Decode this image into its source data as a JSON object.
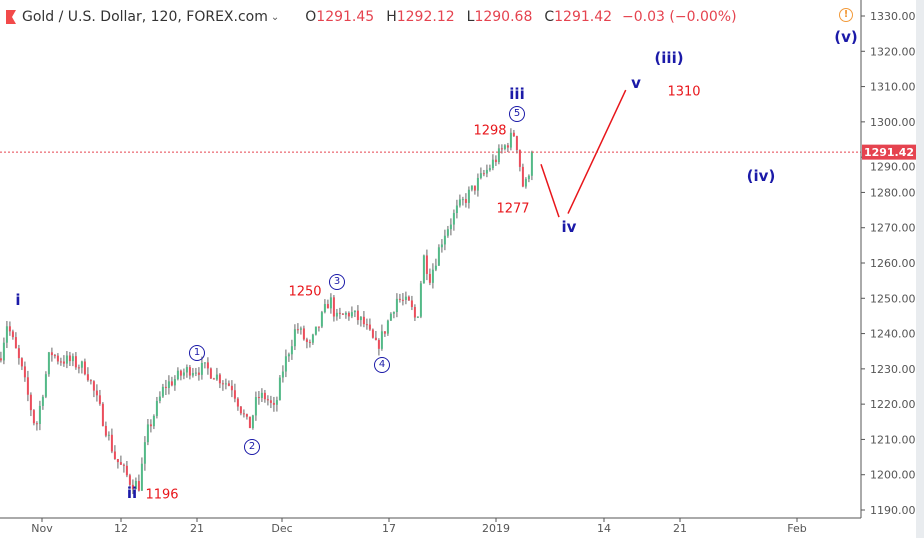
{
  "header": {
    "symbol": "Gold / U.S. Dollar, 120, FOREX.com",
    "open_label": "O",
    "open": "1291.45",
    "high_label": "H",
    "high": "1292.12",
    "low_label": "L",
    "low": "1290.68",
    "close_label": "C",
    "close": "1291.42",
    "change": "−0.03 (−0.00%)",
    "warning_icon": "exclamation-circle-icon"
  },
  "colors": {
    "up": "#53b987",
    "down": "#eb4d5c",
    "projection": "#e8161b",
    "wave_labels": "#1b1aa8",
    "price_tag": "#e5434f"
  },
  "chart_data": {
    "type": "candlestick",
    "title": "",
    "ylim": [
      1190,
      1330
    ],
    "y_ticks": [
      "1330.00",
      "1320.00",
      "1310.00",
      "1300.00",
      "1290.00",
      "1280.00",
      "1270.00",
      "1260.00",
      "1250.00",
      "1240.00",
      "1230.00",
      "1220.00",
      "1210.00",
      "1200.00",
      "1190.00"
    ],
    "x_ticks": [
      {
        "label": "Nov",
        "date": "2018-11-01"
      },
      {
        "label": "12",
        "date": "2018-11-12"
      },
      {
        "label": "21",
        "date": "2018-11-21"
      },
      {
        "label": "Dec",
        "date": "2018-12-01"
      },
      {
        "label": "17",
        "date": "2018-12-17"
      },
      {
        "label": "2019",
        "date": "2019-01-02"
      },
      {
        "label": "14",
        "date": "2019-01-14"
      },
      {
        "label": "21",
        "date": "2019-01-21"
      },
      {
        "label": "Feb",
        "date": "2019-02-01"
      }
    ],
    "last_price": "1291.42",
    "price_path": [
      [
        "2018-10-26",
        1233
      ],
      [
        "2018-10-27",
        1243
      ],
      [
        "2018-10-29",
        1230
      ],
      [
        "2018-10-31",
        1213
      ],
      [
        "2018-11-02",
        1235
      ],
      [
        "2018-11-03",
        1233
      ],
      [
        "2018-11-05",
        1232
      ],
      [
        "2018-11-07",
        1230
      ],
      [
        "2018-11-09",
        1218
      ],
      [
        "2018-11-11",
        1205
      ],
      [
        "2018-11-13",
        1198
      ],
      [
        "2018-11-14",
        1197
      ],
      [
        "2018-11-15",
        1212
      ],
      [
        "2018-11-17",
        1225
      ],
      [
        "2018-11-20",
        1230
      ],
      [
        "2018-11-22",
        1230
      ],
      [
        "2018-11-25",
        1225
      ],
      [
        "2018-11-27",
        1213
      ],
      [
        "2018-11-28",
        1222
      ],
      [
        "2018-11-29",
        1222
      ],
      [
        "2018-11-30",
        1218
      ],
      [
        "2018-12-01",
        1230
      ],
      [
        "2018-12-03",
        1242
      ],
      [
        "2018-12-05",
        1236
      ],
      [
        "2018-12-08",
        1250
      ],
      [
        "2018-12-09",
        1244
      ],
      [
        "2018-12-11",
        1246
      ],
      [
        "2018-12-13",
        1243
      ],
      [
        "2018-12-15",
        1236
      ],
      [
        "2018-12-16",
        1240
      ],
      [
        "2018-12-18",
        1250
      ],
      [
        "2018-12-20",
        1248
      ],
      [
        "2018-12-21",
        1243
      ],
      [
        "2018-12-22",
        1262
      ],
      [
        "2018-12-23",
        1256
      ],
      [
        "2018-12-25",
        1268
      ],
      [
        "2018-12-27",
        1275
      ],
      [
        "2018-12-29",
        1280
      ],
      [
        "2018-12-31",
        1285
      ],
      [
        "2019-01-02",
        1290
      ],
      [
        "2019-01-04",
        1297
      ],
      [
        "2019-01-05",
        1280
      ],
      [
        "2019-01-06",
        1291.42
      ]
    ],
    "projection": [
      [
        "2019-01-07",
        1288
      ],
      [
        "2019-01-09",
        1273
      ],
      [
        "2019-01-10",
        1274
      ],
      [
        "2019-01-16",
        1309
      ]
    ],
    "annotations": {
      "wave_i": "i",
      "wave_ii": "ii",
      "wave_iii": "iii",
      "wave_iv": "iv",
      "wave_v": "v",
      "wave_iii_major": "(iii)",
      "wave_iv_major": "(iv)",
      "wave_v_major": "(v)",
      "sub1": "1",
      "sub2": "2",
      "sub3": "3",
      "sub4": "4",
      "sub5": "5",
      "price_1196": "1196",
      "price_1250": "1250",
      "price_1298": "1298",
      "price_1277": "1277",
      "price_1310": "1310"
    }
  }
}
